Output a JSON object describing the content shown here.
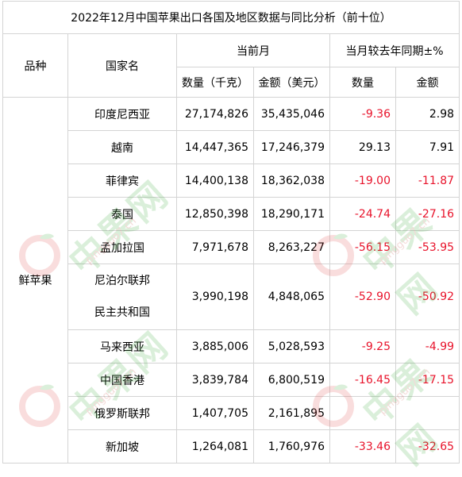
{
  "title": "2022年12月中国苹果出口各国及地区数据与同比分析（前十位）",
  "headers": {
    "variety": "品种",
    "country": "国家名",
    "current_month": "当前月",
    "yoy": "当月较去年同期±%",
    "qty": "数量（千克）",
    "amount": "金额（美元）",
    "yoy_qty": "数量",
    "yoy_amount": "金额"
  },
  "variety_value": "鲜苹果",
  "rows": [
    {
      "country": "印度尼西亚",
      "qty": "27,174,826",
      "amount": "35,435,046",
      "yoy_qty": "-9.36",
      "yoy_amount": "2.98"
    },
    {
      "country": "越南",
      "qty": "14,447,365",
      "amount": "17,246,379",
      "yoy_qty": "29.13",
      "yoy_amount": "7.91"
    },
    {
      "country": "菲律宾",
      "qty": "14,400,138",
      "amount": "18,362,038",
      "yoy_qty": "-19.00",
      "yoy_amount": "-11.87"
    },
    {
      "country": "泰国",
      "qty": "12,850,398",
      "amount": "18,290,171",
      "yoy_qty": "-24.74",
      "yoy_amount": "-27.16"
    },
    {
      "country": "孟加拉国",
      "qty": "7,971,678",
      "amount": "8,263,227",
      "yoy_qty": "-56.15",
      "yoy_amount": "-53.95"
    },
    {
      "country_line1": "尼泊尔联邦",
      "country_line2": "民主共和国",
      "qty": "3,990,198",
      "amount": "4,848,065",
      "yoy_qty": "-52.90",
      "yoy_amount": "-50.92"
    },
    {
      "country": "马来西亚",
      "qty": "3,885,006",
      "amount": "5,028,593",
      "yoy_qty": "-9.25",
      "yoy_amount": "-4.99"
    },
    {
      "country": "中国香港",
      "qty": "3,839,784",
      "amount": "6,800,519",
      "yoy_qty": "-16.45",
      "yoy_amount": "-17.15"
    },
    {
      "country": "俄罗斯联邦",
      "qty": "1,407,705",
      "amount": "2,161,895",
      "yoy_qty": "",
      "yoy_amount": ""
    },
    {
      "country": "新加坡",
      "qty": "1,264,081",
      "amount": "1,760,976",
      "yoy_qty": "-33.46",
      "yoy_amount": "-32.65"
    }
  ],
  "watermark": {
    "text": "中果网",
    "url": "pingguo7.cn",
    "color_green": "#3aa83a",
    "color_red": "#c0392b"
  },
  "colors": {
    "negative": "#e8132b",
    "border": "#d4d4d4"
  }
}
